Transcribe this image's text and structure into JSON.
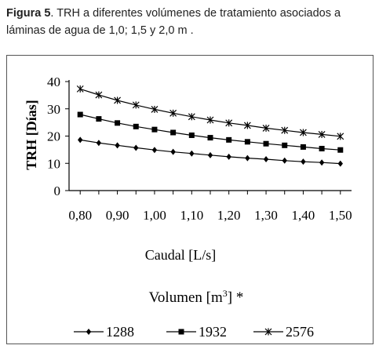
{
  "caption": {
    "figure_label": "Figura 5",
    "text": ". TRH a diferentes volúmenes de tratamiento asociados a láminas de agua de 1,0; 1,5 y 2,0 m ."
  },
  "chart_data": {
    "type": "line",
    "xlabel": "Caudal [L/s]",
    "ylabel": "TRH [Días]",
    "x_tick_labels": [
      "0,80",
      "0,90",
      "1,00",
      "1,10",
      "1,20",
      "1,30",
      "1,40",
      "1,50"
    ],
    "y_tick_labels": [
      "0",
      "10",
      "20",
      "30",
      "40"
    ],
    "xlim": [
      0.77,
      1.53
    ],
    "ylim": [
      0,
      40
    ],
    "legend_title": "Volumen [m3] *",
    "legend_position": "bottom",
    "x": [
      0.8,
      0.85,
      0.9,
      0.95,
      1.0,
      1.05,
      1.1,
      1.15,
      1.2,
      1.25,
      1.3,
      1.35,
      1.4,
      1.45,
      1.5
    ],
    "series": [
      {
        "name": "1288",
        "marker": "diamond",
        "values": [
          18.6,
          17.5,
          16.6,
          15.7,
          14.9,
          14.2,
          13.6,
          13.0,
          12.4,
          11.9,
          11.5,
          11.0,
          10.6,
          10.3,
          9.9
        ]
      },
      {
        "name": "1932",
        "marker": "square",
        "values": [
          27.9,
          26.3,
          24.8,
          23.5,
          22.4,
          21.3,
          20.3,
          19.4,
          18.6,
          17.9,
          17.2,
          16.6,
          16.0,
          15.4,
          14.9
        ]
      },
      {
        "name": "2576",
        "marker": "star",
        "values": [
          37.3,
          35.1,
          33.1,
          31.4,
          29.8,
          28.4,
          27.1,
          25.9,
          24.8,
          23.9,
          22.9,
          22.1,
          21.3,
          20.6,
          19.9
        ]
      }
    ],
    "grid": false
  }
}
